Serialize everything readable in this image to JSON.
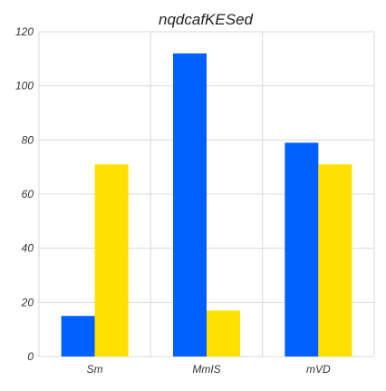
{
  "chart_data": {
    "type": "bar",
    "title": "nqdcafKESed",
    "xlabel": "",
    "ylabel": "",
    "categories": [
      "Sm",
      "MmIS",
      "mVD"
    ],
    "series": [
      {
        "values": [
          15,
          112,
          79
        ],
        "color": "#0060ff"
      },
      {
        "values": [
          71,
          17,
          71
        ],
        "color": "#ffe000"
      }
    ],
    "ylim": [
      0,
      120
    ],
    "yticks": [
      0,
      20,
      40,
      60,
      80,
      100,
      120
    ],
    "grid": true,
    "legend": "none"
  }
}
